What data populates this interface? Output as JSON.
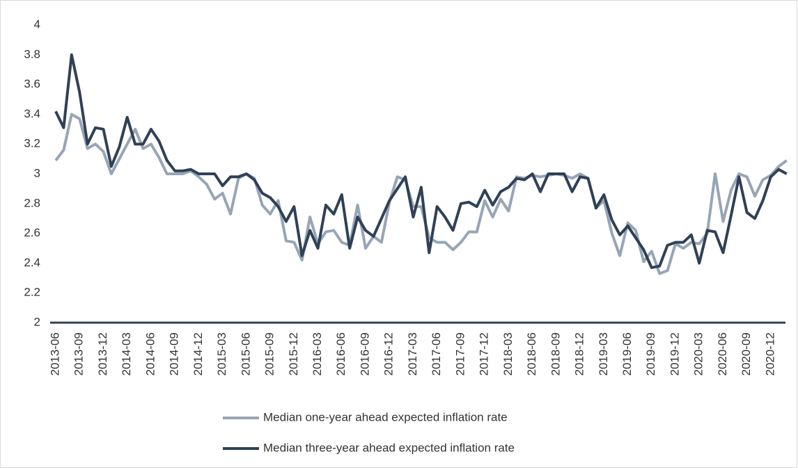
{
  "chart_data": {
    "type": "line",
    "categories": [
      "2013-06",
      null,
      null,
      "2013-09",
      null,
      null,
      "2013-12",
      null,
      null,
      "2014-03",
      null,
      null,
      "2014-06",
      null,
      null,
      "2014-09",
      null,
      null,
      "2014-12",
      null,
      null,
      "2015-03",
      null,
      null,
      "2015-06",
      null,
      null,
      "2015-09",
      null,
      null,
      "2015-12",
      null,
      null,
      "2016-03",
      null,
      null,
      "2016-06",
      null,
      null,
      "2016-09",
      null,
      null,
      "2016-12",
      null,
      null,
      "2017-03",
      null,
      null,
      "2017-06",
      null,
      null,
      "2017-09",
      null,
      null,
      "2017-12",
      null,
      null,
      "2018-03",
      null,
      null,
      "2018-06",
      null,
      null,
      "2018-09",
      null,
      null,
      "2018-12",
      null,
      null,
      "2019-03",
      null,
      null,
      "2019-06",
      null,
      null,
      "2019-09",
      null,
      null,
      "2019-12",
      null,
      null,
      "2020-03",
      null,
      null,
      "2020-06",
      null,
      null,
      "2020-09",
      null,
      null,
      "2020-12",
      null,
      null
    ],
    "series": [
      {
        "name": "Median one-year ahead expected inflation rate",
        "color": "#97a5b5",
        "values": [
          3.09,
          3.16,
          3.4,
          3.37,
          3.17,
          3.2,
          3.15,
          3.0,
          3.1,
          3.2,
          3.3,
          3.17,
          3.2,
          3.11,
          3.0,
          3.0,
          3.0,
          3.02,
          2.98,
          2.93,
          2.83,
          2.87,
          2.73,
          2.97,
          3.0,
          2.97,
          2.79,
          2.73,
          2.82,
          2.55,
          2.54,
          2.42,
          2.71,
          2.53,
          2.61,
          2.62,
          2.54,
          2.52,
          2.79,
          2.5,
          2.58,
          2.54,
          2.81,
          2.98,
          2.96,
          2.78,
          2.78,
          2.57,
          2.54,
          2.54,
          2.49,
          2.54,
          2.61,
          2.61,
          2.82,
          2.71,
          2.83,
          2.75,
          2.98,
          2.97,
          2.99,
          2.98,
          2.99,
          3.0,
          2.99,
          2.97,
          3.0,
          2.97,
          2.77,
          2.82,
          2.6,
          2.45,
          2.67,
          2.62,
          2.41,
          2.48,
          2.33,
          2.35,
          2.53,
          2.5,
          2.54,
          2.53,
          2.6,
          3.0,
          2.68,
          2.89,
          3.0,
          2.98,
          2.85,
          2.96,
          2.99,
          3.05,
          3.09
        ]
      },
      {
        "name": "Median three-year ahead expected inflation rate",
        "color": "#2f4157",
        "values": [
          3.42,
          3.31,
          3.8,
          3.55,
          3.2,
          3.31,
          3.3,
          3.05,
          3.18,
          3.38,
          3.2,
          3.2,
          3.3,
          3.22,
          3.09,
          3.02,
          3.02,
          3.03,
          3.0,
          3.0,
          3.0,
          2.92,
          2.98,
          2.98,
          3.0,
          2.96,
          2.87,
          2.84,
          2.78,
          2.68,
          2.78,
          2.45,
          2.62,
          2.5,
          2.79,
          2.73,
          2.86,
          2.5,
          2.71,
          2.62,
          2.58,
          2.7,
          2.82,
          2.9,
          2.98,
          2.71,
          2.91,
          2.47,
          2.78,
          2.71,
          2.62,
          2.8,
          2.81,
          2.78,
          2.89,
          2.79,
          2.88,
          2.91,
          2.97,
          2.96,
          3.0,
          2.88,
          3.0,
          3.0,
          3.0,
          2.88,
          2.98,
          2.97,
          2.77,
          2.86,
          2.69,
          2.59,
          2.65,
          2.57,
          2.49,
          2.37,
          2.38,
          2.52,
          2.54,
          2.54,
          2.59,
          2.4,
          2.62,
          2.61,
          2.47,
          2.72,
          2.98,
          2.74,
          2.7,
          2.82,
          2.98,
          3.03,
          3.0
        ]
      }
    ],
    "ylim": [
      2,
      4
    ],
    "yticks": [
      2,
      2.2,
      2.4,
      2.6,
      2.8,
      3,
      3.2,
      3.4,
      3.6,
      3.8,
      4
    ],
    "grid": false
  }
}
